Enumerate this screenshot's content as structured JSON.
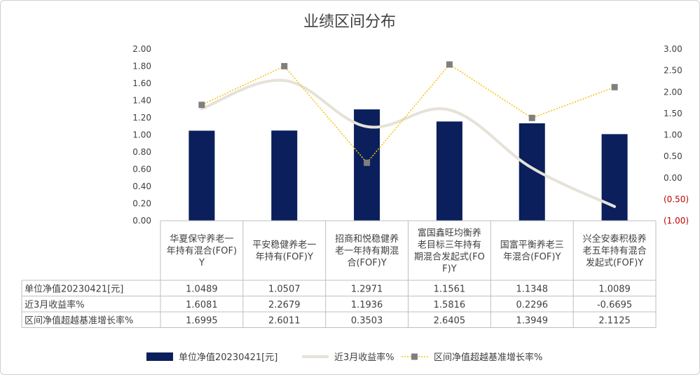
{
  "chart_data": {
    "type": "bar",
    "title": "业绩区间分布",
    "categories": [
      [
        "华夏保守养老一",
        "年持有混合(FOF)",
        "Y"
      ],
      [
        "平安稳健养老一",
        "年持有(FOF)Y"
      ],
      [
        "招商和悦稳健养",
        "老一年持有期混",
        "合(FOF)Y"
      ],
      [
        "富国鑫旺均衡养",
        "老目标三年持有",
        "期混合发起式(FO",
        "F)Y"
      ],
      [
        "国富平衡养老三",
        "年混合(FOF)Y"
      ],
      [
        "兴全安泰积极养",
        "老五年持有混合",
        "发起式(FOF)Y"
      ]
    ],
    "y_left": {
      "min": 0,
      "max": 2.0,
      "step": 0.2,
      "ticks": [
        "0.00",
        "0.20",
        "0.40",
        "0.60",
        "0.80",
        "1.00",
        "1.20",
        "1.40",
        "1.60",
        "1.80",
        "2.00"
      ]
    },
    "y_right": {
      "min": -1.0,
      "max": 3.0,
      "step": 0.5,
      "ticks": [
        "(1.00)",
        "(0.50)",
        "0.00",
        "0.50",
        "1.00",
        "1.50",
        "2.00",
        "2.50",
        "3.00"
      ]
    },
    "series": [
      {
        "name": "单位净值20230421[元]",
        "kind": "bar",
        "axis": "left",
        "color": "#0a1f5c",
        "values": [
          1.0489,
          1.0507,
          1.2971,
          1.1561,
          1.1348,
          1.0089
        ],
        "labels": [
          "1.0489",
          "1.0507",
          "1.2971",
          "1.1561",
          "1.1348",
          "1.0089"
        ]
      },
      {
        "name": "近3月收益率%",
        "kind": "line",
        "axis": "right",
        "color": "#e6e2d8",
        "values": [
          1.6081,
          2.2679,
          1.1936,
          1.5816,
          0.2296,
          -0.6695
        ],
        "labels": [
          "1.6081",
          "2.2679",
          "1.1936",
          "1.5816",
          "0.2296",
          "-0.6695"
        ]
      },
      {
        "name": "区间净值超越基准增长率%",
        "kind": "dotted-line",
        "axis": "right",
        "color": "#f5c518",
        "marker_color": "#7f7f7f",
        "values": [
          1.6995,
          2.6011,
          0.3503,
          2.6405,
          1.3949,
          2.1125
        ],
        "labels": [
          "1.6995",
          "2.6011",
          "0.3503",
          "2.6405",
          "1.3949",
          "2.1125"
        ]
      }
    ],
    "negative_tick_color": "#c00000",
    "grid": false,
    "legend": "bottom"
  }
}
